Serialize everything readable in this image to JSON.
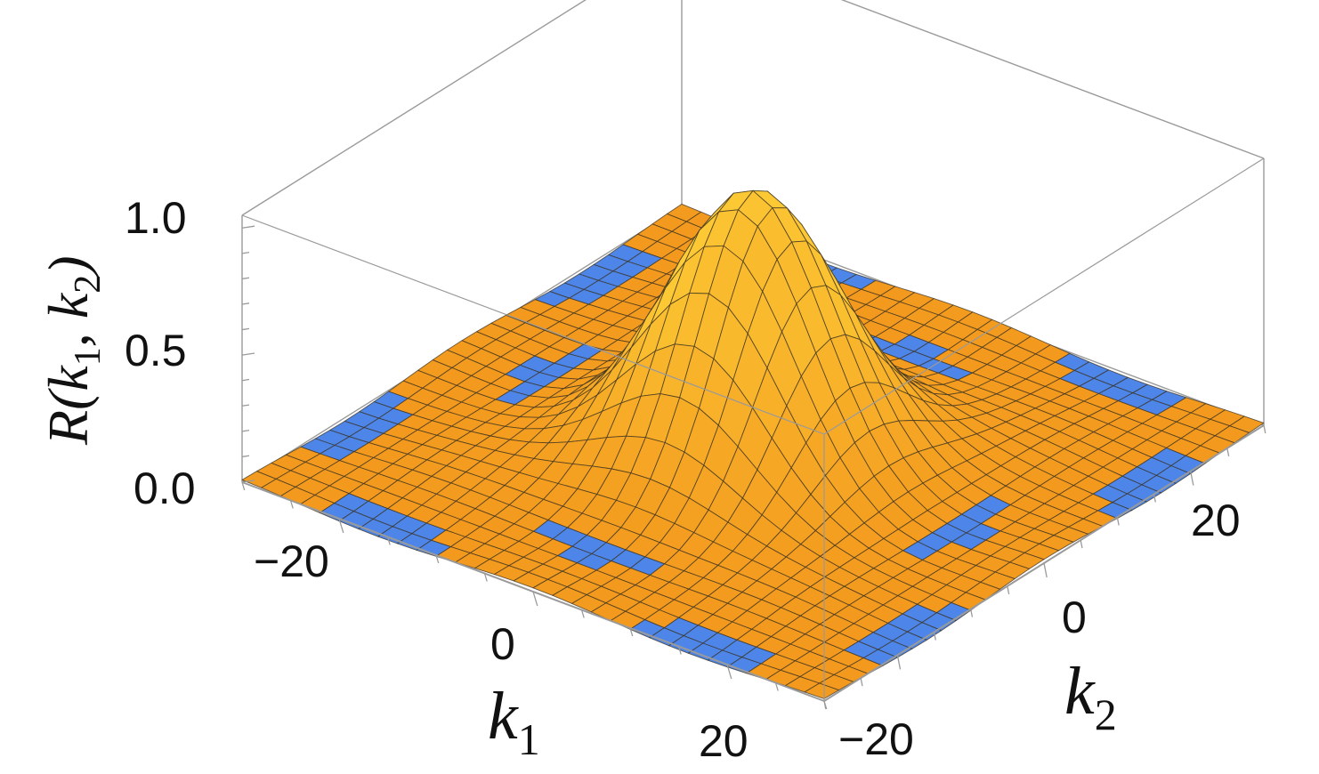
{
  "chart_data": {
    "type": "surface3d",
    "title": "",
    "zlabel": {
      "main": "R(k",
      "sub1": "1",
      "sep": ", k",
      "sub2": "2",
      "close": ")"
    },
    "xlabel": {
      "main": "k",
      "sub": "1"
    },
    "ylabel": {
      "main": "k",
      "sub": "2"
    },
    "xlim": [
      -30,
      30
    ],
    "ylim": [
      -30,
      30
    ],
    "zlim": [
      0,
      1.05
    ],
    "x_ticks": [
      -20,
      0,
      20
    ],
    "x_tick_labels": [
      "−20",
      "0",
      "20"
    ],
    "y_ticks": [
      -20,
      0,
      20
    ],
    "y_tick_labels": [
      "−20",
      "0",
      "20"
    ],
    "z_ticks": [
      0.0,
      0.5,
      1.0
    ],
    "z_tick_labels": [
      "0.0",
      "0.5",
      "1.0"
    ],
    "peak": {
      "k1": 0,
      "k2": 0,
      "value": 1.0,
      "width": 7.5
    },
    "colors": {
      "top_surface": "#f39a1e",
      "peak_highlight": "#ffd53a",
      "underside": "#4d86e8",
      "mesh": "#3a3020",
      "box": "#9a9a9a"
    }
  }
}
